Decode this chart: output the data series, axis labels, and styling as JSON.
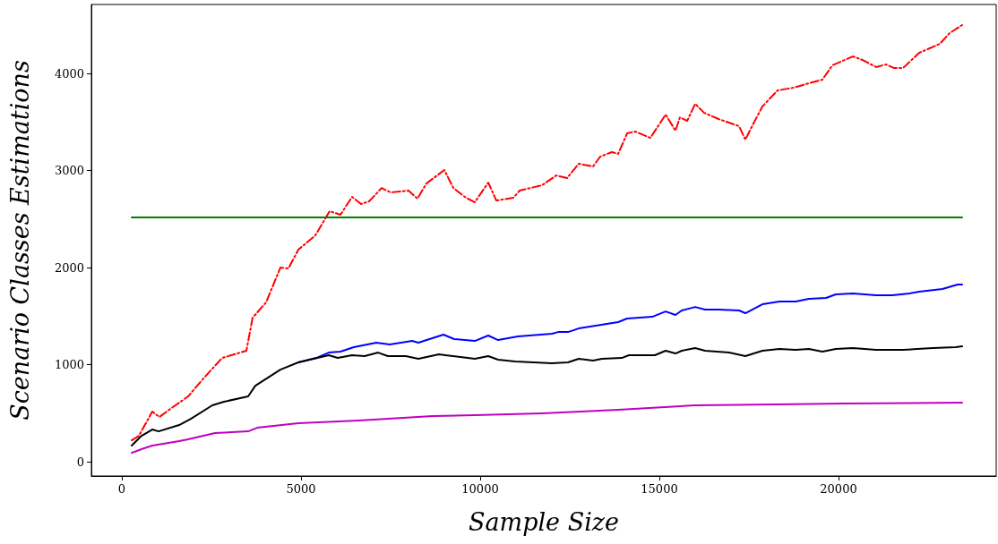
{
  "chart_data": {
    "type": "line",
    "xlabel": "Sample Size",
    "ylabel": "Scenario Classes Estimations",
    "xlim": [
      -850,
      24400
    ],
    "ylim": [
      -147,
      4710
    ],
    "xticks": [
      0,
      5000,
      10000,
      15000,
      20000
    ],
    "yticks": [
      0,
      1000,
      2000,
      3000,
      4000
    ],
    "grid": false,
    "marker": "none",
    "series": [
      {
        "color": "#ff0000",
        "line_style": "dashdot",
        "x": [
          275,
          475,
          850,
          1050,
          1350,
          1850,
          2275,
          2800,
          3475,
          3650,
          4025,
          4425,
          4650,
          4925,
          5400,
          5800,
          6100,
          6425,
          6675,
          6900,
          7250,
          7500,
          8000,
          8250,
          8500,
          9000,
          9250,
          9600,
          9850,
          10225,
          10450,
          10925,
          11100,
          11725,
          12125,
          12425,
          12750,
          13150,
          13350,
          13675,
          13850,
          14100,
          14325,
          14750,
          15175,
          15450,
          15575,
          15775,
          16000,
          16250,
          16650,
          17225,
          17400,
          17600,
          17875,
          18300,
          18750,
          19175,
          19550,
          19825,
          20400,
          20675,
          21050,
          21325,
          21550,
          21800,
          22250,
          22825,
          23100,
          23450
        ],
        "values": [
          221,
          267,
          516,
          461,
          544,
          673,
          857,
          1069,
          1143,
          1484,
          1641,
          2000,
          1991,
          2184,
          2332,
          2581,
          2544,
          2728,
          2654,
          2682,
          2820,
          2774,
          2793,
          2710,
          2866,
          3005,
          2820,
          2720,
          2673,
          2876,
          2691,
          2719,
          2793,
          2848,
          2949,
          2922,
          3069,
          3041,
          3143,
          3189,
          3171,
          3382,
          3401,
          3336,
          3576,
          3410,
          3548,
          3511,
          3687,
          3594,
          3530,
          3456,
          3318,
          3465,
          3659,
          3825,
          3853,
          3899,
          3935,
          4083,
          4175,
          4138,
          4065,
          4092,
          4055,
          4055,
          4212,
          4304,
          4415,
          4498
        ]
      },
      {
        "color": "#008000",
        "x": [
          275,
          23450
        ],
        "values": [
          2516,
          2516
        ]
      },
      {
        "color": "#0000ff",
        "x": [
          4925,
          5425,
          5775,
          6100,
          6475,
          7100,
          7475,
          8100,
          8275,
          8975,
          9275,
          9850,
          10225,
          10500,
          11050,
          12000,
          12175,
          12450,
          12750,
          13850,
          14100,
          14800,
          15175,
          15450,
          15625,
          16000,
          16275,
          16650,
          17225,
          17400,
          17875,
          18350,
          18800,
          19175,
          19650,
          19925,
          20400,
          21050,
          21500,
          21975,
          22250,
          22900,
          23325,
          23450
        ],
        "values": [
          1023,
          1069,
          1124,
          1134,
          1180,
          1226,
          1207,
          1244,
          1226,
          1309,
          1263,
          1244,
          1300,
          1253,
          1290,
          1318,
          1336,
          1336,
          1373,
          1438,
          1475,
          1493,
          1548,
          1512,
          1558,
          1594,
          1567,
          1567,
          1558,
          1530,
          1622,
          1650,
          1650,
          1677,
          1687,
          1724,
          1733,
          1714,
          1714,
          1733,
          1751,
          1779,
          1825,
          1825
        ]
      },
      {
        "color": "#000000",
        "x": [
          275,
          550,
          850,
          1025,
          1600,
          1925,
          2525,
          2850,
          3525,
          3725,
          4425,
          4925,
          5775,
          6025,
          6425,
          6775,
          7150,
          7425,
          7925,
          8275,
          8850,
          9025,
          9850,
          10225,
          10500,
          10975,
          12000,
          12450,
          12750,
          13150,
          13400,
          13950,
          14150,
          14875,
          15175,
          15450,
          15625,
          16000,
          16275,
          16950,
          17400,
          17875,
          18350,
          18800,
          19175,
          19550,
          19925,
          20400,
          21050,
          21800,
          22625,
          23275,
          23450
        ],
        "values": [
          166,
          267,
          332,
          313,
          378,
          442,
          581,
          618,
          673,
          783,
          949,
          1023,
          1097,
          1069,
          1097,
          1088,
          1124,
          1088,
          1088,
          1060,
          1106,
          1097,
          1060,
          1088,
          1051,
          1032,
          1014,
          1023,
          1060,
          1041,
          1060,
          1069,
          1097,
          1097,
          1143,
          1115,
          1143,
          1171,
          1143,
          1124,
          1088,
          1143,
          1161,
          1152,
          1161,
          1134,
          1161,
          1171,
          1152,
          1152,
          1171,
          1180,
          1189
        ]
      },
      {
        "color": "#bf00bf",
        "x": [
          275,
          550,
          850,
          1600,
          1850,
          2600,
          3525,
          3775,
          4925,
          6600,
          7850,
          8675,
          9850,
          11725,
          13850,
          16000,
          18250,
          20100,
          23450
        ],
        "values": [
          92,
          129,
          166,
          212,
          230,
          295,
          313,
          350,
          396,
          424,
          452,
          470,
          479,
          498,
          535,
          581,
          590,
          599,
          608
        ]
      }
    ]
  }
}
